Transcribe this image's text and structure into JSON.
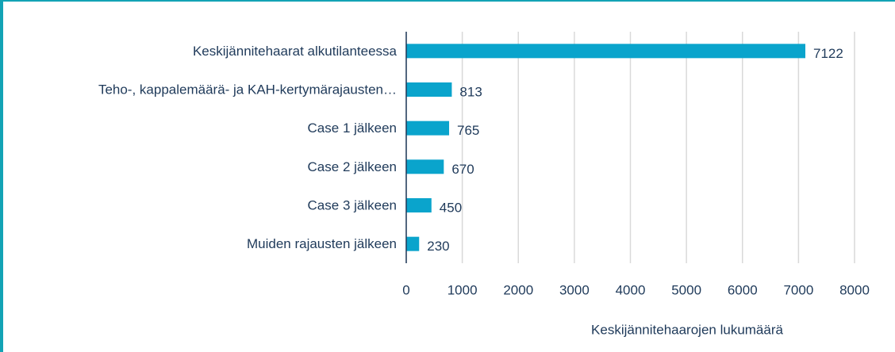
{
  "chart_data": {
    "type": "barh",
    "categories": [
      "Keskijännitehaarat alkutilanteessa",
      "Teho-, kappalemäärä- ja KAH-kertymärajausten…",
      "Case 1 jälkeen",
      "Case 2 jälkeen",
      "Case 3 jälkeen",
      "Muiden rajausten jälkeen"
    ],
    "values": [
      7122,
      813,
      765,
      670,
      450,
      230
    ],
    "color": "#0aa4cc",
    "xlim": [
      0,
      8000
    ],
    "xticks": [
      0,
      1000,
      2000,
      3000,
      4000,
      5000,
      6000,
      7000,
      8000
    ],
    "xlabel": "Keskijännitehaarojen lukumäärä",
    "grid": true
  }
}
